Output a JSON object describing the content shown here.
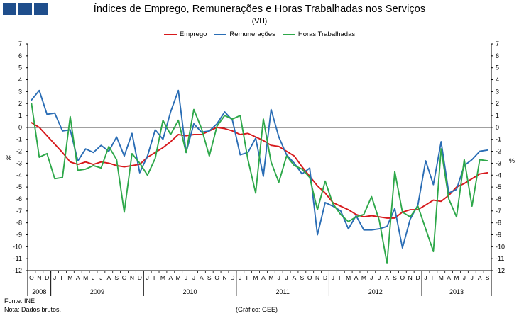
{
  "header": {
    "title": "Índices de Emprego, Remunerações e Horas Trabalhadas nos Serviços",
    "subtitle": "(VH)"
  },
  "footer": {
    "source": "Fonte: INE",
    "note": "Nota: Dados brutos.",
    "credit": "(Gráfico: GEE)"
  },
  "chart_data": {
    "type": "line",
    "title": "Índices de Emprego, Remunerações e Horas Trabalhadas nos Serviços",
    "subtitle": "(VH)",
    "ylabel_left": "%",
    "ylabel_right": "%",
    "ylim": [
      -12,
      7
    ],
    "yticks": [
      7,
      6,
      5,
      4,
      3,
      2,
      1,
      0,
      -1,
      -2,
      -3,
      -4,
      -5,
      -6,
      -7,
      -8,
      -9,
      -10,
      -11,
      -12
    ],
    "grid": false,
    "legend_position": "top",
    "x": [
      "O",
      "N",
      "D",
      "J",
      "F",
      "M",
      "A",
      "M",
      "J",
      "J",
      "A",
      "S",
      "O",
      "N",
      "D",
      "J",
      "F",
      "M",
      "A",
      "M",
      "J",
      "J",
      "A",
      "S",
      "O",
      "N",
      "D",
      "J",
      "F",
      "M",
      "A",
      "M",
      "J",
      "J",
      "A",
      "S",
      "O",
      "N",
      "D",
      "J",
      "F",
      "M",
      "A",
      "M",
      "J",
      "J",
      "A",
      "S",
      "O",
      "N",
      "D",
      "J",
      "F",
      "M",
      "A",
      "M",
      "J",
      "J",
      "A",
      "S"
    ],
    "years": [
      {
        "label": "2008",
        "start": 0,
        "end": 2
      },
      {
        "label": "2009",
        "start": 3,
        "end": 14
      },
      {
        "label": "2010",
        "start": 15,
        "end": 26
      },
      {
        "label": "2011",
        "start": 27,
        "end": 38
      },
      {
        "label": "2012",
        "start": 39,
        "end": 50
      },
      {
        "label": "2013",
        "start": 51,
        "end": 59
      }
    ],
    "series": [
      {
        "name": "Emprego",
        "color": "#d7191c",
        "values": [
          0.4,
          0.0,
          -0.7,
          -1.4,
          -2.1,
          -2.9,
          -3.1,
          -2.9,
          -3.1,
          -2.9,
          -3.0,
          -3.2,
          -3.3,
          -3.2,
          -3.1,
          -2.5,
          -2.1,
          -1.7,
          -1.2,
          -0.6,
          -0.7,
          -0.6,
          -0.6,
          -0.3,
          0.0,
          -0.1,
          -0.3,
          -0.6,
          -0.5,
          -0.8,
          -1.1,
          -1.5,
          -1.6,
          -2.0,
          -2.4,
          -3.3,
          -4.1,
          -4.9,
          -5.5,
          -6.3,
          -6.6,
          -6.9,
          -7.3,
          -7.5,
          -7.4,
          -7.5,
          -7.6,
          -7.6,
          -7.1,
          -6.9,
          -6.9,
          -6.5,
          -6.1,
          -6.2,
          -5.7,
          -5.0,
          -4.7,
          -4.3,
          -3.9,
          -3.8
        ]
      },
      {
        "name": "Remunerações",
        "color": "#2a6db5",
        "values": [
          2.3,
          3.1,
          1.1,
          1.2,
          -0.3,
          -0.2,
          -2.8,
          -1.8,
          -2.1,
          -1.5,
          -2.0,
          -0.8,
          -2.4,
          -0.5,
          -3.8,
          -2.4,
          -0.2,
          -1.0,
          1.3,
          3.1,
          -2.1,
          0.3,
          -0.4,
          -0.3,
          0.3,
          1.3,
          0.6,
          -2.3,
          -2.1,
          -0.9,
          -4.1,
          1.5,
          -0.8,
          -2.3,
          -3.0,
          -3.9,
          -3.4,
          -9.0,
          -6.3,
          -6.6,
          -7.0,
          -8.5,
          -7.4,
          -8.6,
          -8.6,
          -8.5,
          -8.3,
          -6.8,
          -10.1,
          -7.7,
          -6.5,
          -2.8,
          -4.8,
          -1.2,
          -5.5,
          -5.2,
          -3.2,
          -2.7,
          -2.0,
          -1.9
        ]
      },
      {
        "name": "Horas Trabalhadas",
        "color": "#2ea84a",
        "values": [
          2.0,
          -2.5,
          -2.2,
          -4.3,
          -4.2,
          0.9,
          -3.6,
          -3.5,
          -3.2,
          -3.4,
          -1.6,
          -2.7,
          -7.1,
          -2.2,
          -3.0,
          -4.0,
          -2.6,
          0.6,
          -0.6,
          0.6,
          -2.1,
          1.5,
          -0.1,
          -2.4,
          0.1,
          1.0,
          0.7,
          1.0,
          -2.7,
          -5.5,
          0.7,
          -2.9,
          -4.6,
          -2.4,
          -3.2,
          -3.5,
          -4.2,
          -6.9,
          -4.5,
          -6.4,
          -7.3,
          -7.9,
          -7.5,
          -7.3,
          -5.8,
          -7.8,
          -11.4,
          -3.7,
          -7.1,
          -7.5,
          -6.6,
          -8.5,
          -10.4,
          -1.8,
          -6.0,
          -7.5,
          -2.7,
          -6.6,
          -2.7,
          -2.8
        ]
      }
    ]
  }
}
